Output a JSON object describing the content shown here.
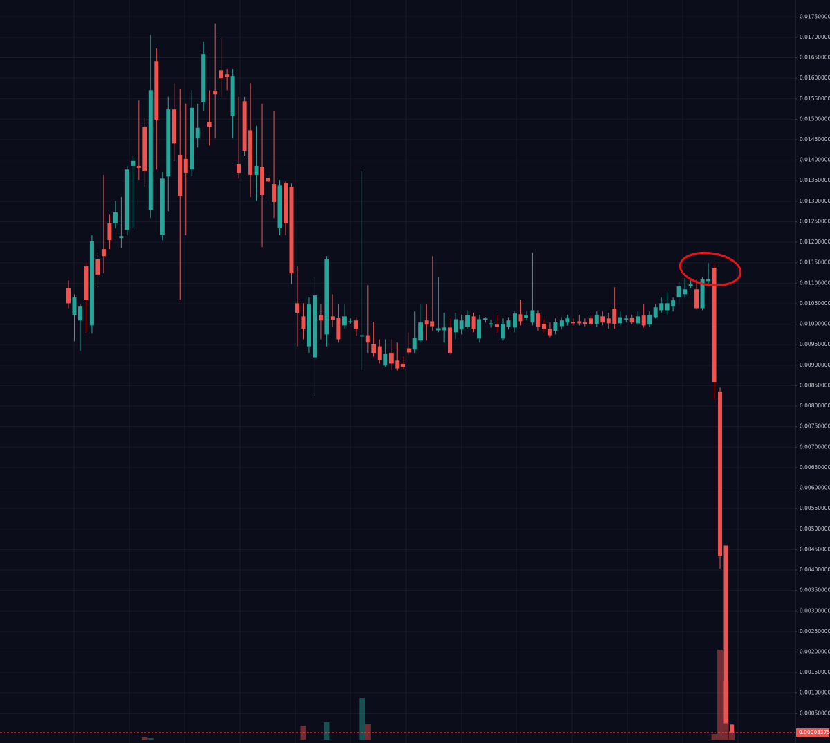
{
  "chart_data": {
    "type": "candlestick",
    "up_color": "#26a69a",
    "down_color": "#ef5350",
    "grid": true,
    "ylim": [
      -0.00022,
      0.01791
    ],
    "yticks": [
      {
        "value": 0.0005,
        "label": "0.00050000"
      },
      {
        "value": 0.001,
        "label": "0.00100000"
      },
      {
        "value": 0.0015,
        "label": "0.00150000"
      },
      {
        "value": 0.002,
        "label": "0.00200000"
      },
      {
        "value": 0.0025,
        "label": "0.00250000"
      },
      {
        "value": 0.003,
        "label": "0.00300000"
      },
      {
        "value": 0.0035,
        "label": "0.00350000"
      },
      {
        "value": 0.004,
        "label": "0.00400000"
      },
      {
        "value": 0.0045,
        "label": "0.00450000"
      },
      {
        "value": 0.005,
        "label": "0.00500000"
      },
      {
        "value": 0.0055,
        "label": "0.00550000"
      },
      {
        "value": 0.006,
        "label": "0.00600000"
      },
      {
        "value": 0.0065,
        "label": "0.00650000"
      },
      {
        "value": 0.007,
        "label": "0.00700000"
      },
      {
        "value": 0.0075,
        "label": "0.00750000"
      },
      {
        "value": 0.008,
        "label": "0.00800000"
      },
      {
        "value": 0.0085,
        "label": "0.00850000"
      },
      {
        "value": 0.009,
        "label": "0.00900000"
      },
      {
        "value": 0.0095,
        "label": "0.00950000"
      },
      {
        "value": 0.01,
        "label": "0.01000000"
      },
      {
        "value": 0.0105,
        "label": "0.01050000"
      },
      {
        "value": 0.011,
        "label": "0.01100000"
      },
      {
        "value": 0.0115,
        "label": "0.01150000"
      },
      {
        "value": 0.012,
        "label": "0.01200000"
      },
      {
        "value": 0.0125,
        "label": "0.01250000"
      },
      {
        "value": 0.013,
        "label": "0.01300000"
      },
      {
        "value": 0.0135,
        "label": "0.01350000"
      },
      {
        "value": 0.014,
        "label": "0.01400000"
      },
      {
        "value": 0.0145,
        "label": "0.01450000"
      },
      {
        "value": 0.015,
        "label": "0.01500000"
      },
      {
        "value": 0.0155,
        "label": "0.01550000"
      },
      {
        "value": 0.016,
        "label": "0.01600000"
      },
      {
        "value": 0.0165,
        "label": "0.01650000"
      },
      {
        "value": 0.017,
        "label": "0.01700000"
      },
      {
        "value": 0.0175,
        "label": "0.01750000"
      }
    ],
    "last_price": {
      "value": 3.375e-05,
      "label": "0.00003375"
    },
    "open": [
      0.01088,
      0.01023,
      0.01009,
      0.01141,
      0.00997,
      0.01158,
      0.01183,
      0.01246,
      0.01246,
      0.0121,
      0.0123,
      0.01386,
      0.01386,
      0.01482,
      0.01279,
      0.01642,
      0.01217,
      0.0136,
      0.01524,
      0.01413,
      0.01403,
      0.01377,
      0.01453,
      0.01541,
      0.01494,
      0.0157,
      0.0162,
      0.0161,
      0.01509,
      0.01391,
      0.01544,
      0.01473,
      0.01364,
      0.01384,
      0.01357,
      0.01342,
      0.01234,
      0.01345,
      0.01335,
      0.01051,
      0.01019,
      0.00946,
      0.00919,
      0.01023,
      0.00975,
      0.01019,
      0.01016,
      0.00997,
      0.01006,
      0.01009,
      0.0097,
      0.00973,
      0.00952,
      0.00946,
      0.00899,
      0.0093,
      0.00911,
      0.00903,
      0.00941,
      0.00938,
      0.0096,
      0.01009,
      0.01007,
      0.00985,
      0.00985,
      0.00992,
      0.0098,
      0.00987,
      0.00994,
      0.01019,
      0.00965,
      0.01011,
      0.00999,
      0.00999,
      0.00965,
      0.00994,
      0.00992,
      0.01024,
      0.01016,
      0.01004,
      0.01026,
      0.01001,
      0.00989,
      0.00984,
      0.00995,
      0.01004,
      0.01006,
      0.01007,
      0.01006,
      0.01014,
      0.01001,
      0.01019,
      0.01014,
      0.01038,
      0.01002,
      0.01011,
      0.01016,
      0.01002,
      0.01021,
      0.00999,
      0.01017,
      0.01034,
      0.01034,
      0.01043,
      0.01065,
      0.01073,
      0.01093,
      0.01085,
      0.01039,
      0.01105,
      0.01136,
      0.00835,
      0.0046,
      0.00023
    ],
    "high": [
      0.01107,
      0.01073,
      0.01048,
      0.01149,
      0.01217,
      0.01175,
      0.01364,
      0.01267,
      0.01301,
      0.0131,
      0.01386,
      0.01411,
      0.01546,
      0.01504,
      0.01706,
      0.01673,
      0.01372,
      0.01555,
      0.01588,
      0.01575,
      0.01538,
      0.01571,
      0.01538,
      0.0169,
      0.01571,
      0.01734,
      0.01698,
      0.01622,
      0.01622,
      0.01555,
      0.01555,
      0.01588,
      0.01484,
      0.01538,
      0.01365,
      0.01521,
      0.01352,
      0.01348,
      0.01343,
      0.01141,
      0.01051,
      0.01065,
      0.01115,
      0.01048,
      0.01166,
      0.01073,
      0.01048,
      0.01048,
      0.01014,
      0.01017,
      0.01374,
      0.01095,
      0.01006,
      0.00963,
      0.00963,
      0.00963,
      0.00955,
      0.00921,
      0.0098,
      0.01031,
      0.01048,
      0.01048,
      0.01166,
      0.01115,
      0.01028,
      0.01014,
      0.01028,
      0.01023,
      0.01034,
      0.01028,
      0.01023,
      0.01017,
      0.01011,
      0.01023,
      0.01014,
      0.01017,
      0.01031,
      0.0106,
      0.01031,
      0.01175,
      0.01034,
      0.01014,
      0.01004,
      0.01014,
      0.01017,
      0.01023,
      0.01014,
      0.01023,
      0.01014,
      0.01023,
      0.01031,
      0.01031,
      0.01028,
      0.0109,
      0.01031,
      0.01021,
      0.01023,
      0.01031,
      0.01048,
      0.01031,
      0.01048,
      0.01065,
      0.01078,
      0.01065,
      0.01102,
      0.01112,
      0.01107,
      0.01109,
      0.01115,
      0.01149,
      0.01149,
      0.00845,
      0.0046,
      0.00023
    ],
    "low": [
      0.01039,
      0.00958,
      0.00935,
      0.0098,
      0.00977,
      0.0109,
      0.01124,
      0.01183,
      0.01234,
      0.01186,
      0.01217,
      0.01234,
      0.01352,
      0.01335,
      0.01259,
      0.01377,
      0.01205,
      0.01276,
      0.01398,
      0.0106,
      0.01217,
      0.0136,
      0.01431,
      0.01521,
      0.01436,
      0.01453,
      0.01555,
      0.01571,
      0.01453,
      0.01355,
      0.01411,
      0.0131,
      0.01301,
      0.01188,
      0.01301,
      0.01259,
      0.01217,
      0.01217,
      0.01098,
      0.00946,
      0.00963,
      0.0093,
      0.00825,
      0.00963,
      0.00946,
      0.00994,
      0.00955,
      0.00989,
      0.01001,
      0.00972,
      0.00887,
      0.0093,
      0.00921,
      0.00904,
      0.00896,
      0.00887,
      0.00887,
      0.00891,
      0.00926,
      0.0093,
      0.00955,
      0.0096,
      0.00984,
      0.0098,
      0.00955,
      0.00926,
      0.00963,
      0.00975,
      0.00989,
      0.0098,
      0.00955,
      0.01004,
      0.00992,
      0.0098,
      0.0096,
      0.00987,
      0.0098,
      0.00997,
      0.01011,
      0.00997,
      0.00984,
      0.00977,
      0.00968,
      0.00975,
      0.00987,
      0.00997,
      0.00997,
      0.00997,
      0.00995,
      0.00997,
      0.00994,
      0.00997,
      0.00989,
      0.00989,
      0.00997,
      0.01004,
      0.00999,
      0.00997,
      0.00992,
      0.00994,
      0.01014,
      0.01028,
      0.01023,
      0.01031,
      0.01048,
      0.01065,
      0.01088,
      0.01036,
      0.01034,
      0.01098,
      0.00815,
      0.00403,
      9e-05,
      3e-05
    ],
    "close": [
      0.01051,
      0.01065,
      0.01043,
      0.0106,
      0.01202,
      0.01121,
      0.01166,
      0.01205,
      0.01273,
      0.01215,
      0.01377,
      0.01398,
      0.01381,
      0.01374,
      0.01571,
      0.01499,
      0.01355,
      0.01524,
      0.01441,
      0.01313,
      0.01369,
      0.01528,
      0.01479,
      0.01659,
      0.01482,
      0.01561,
      0.016,
      0.01602,
      0.01605,
      0.01369,
      0.01423,
      0.01364,
      0.01386,
      0.01315,
      0.01348,
      0.01298,
      0.01338,
      0.01246,
      0.01124,
      0.01028,
      0.00989,
      0.01048,
      0.0107,
      0.01009,
      0.01158,
      0.01011,
      0.00963,
      0.01019,
      0.01007,
      0.00989,
      0.00973,
      0.00955,
      0.0093,
      0.00913,
      0.00928,
      0.00904,
      0.00892,
      0.00896,
      0.00931,
      0.00967,
      0.01004,
      0.00999,
      0.00995,
      0.0099,
      0.00992,
      0.0093,
      0.01012,
      0.01009,
      0.01023,
      0.00989,
      0.01012,
      0.01014,
      0.01002,
      0.00994,
      0.01001,
      0.01009,
      0.01026,
      0.01007,
      0.01021,
      0.01034,
      0.00994,
      0.00989,
      0.00973,
      0.01006,
      0.01009,
      0.01014,
      0.01002,
      0.01002,
      0.01001,
      0.01001,
      0.01023,
      0.01004,
      0.01002,
      0.01001,
      0.01017,
      0.01014,
      0.01004,
      0.01019,
      0.00997,
      0.01023,
      0.01041,
      0.01051,
      0.01051,
      0.01058,
      0.01092,
      0.01085,
      0.01097,
      0.01039,
      0.01109,
      0.0111,
      0.00859,
      0.00435,
      0.00026,
      3.375e-05
    ],
    "volume": [
      0,
      0,
      0,
      0,
      0,
      0,
      0,
      0,
      0,
      0,
      0,
      0,
      0,
      3,
      2,
      0,
      0,
      0,
      0,
      0,
      0,
      0,
      0,
      0,
      0,
      0,
      0,
      0,
      0,
      0,
      0,
      0,
      0,
      0,
      0,
      0,
      0,
      0,
      0,
      0,
      20,
      0,
      0,
      0,
      25,
      0,
      0,
      0,
      0,
      0,
      60,
      22,
      0,
      0,
      0,
      0,
      0,
      0,
      0,
      0,
      0,
      0,
      0,
      0,
      0,
      0,
      0,
      0,
      0,
      0,
      0,
      0,
      0,
      0,
      0,
      0,
      0,
      0,
      0,
      0,
      0,
      0,
      0,
      0,
      0,
      0,
      0,
      0,
      0,
      0,
      0,
      0,
      0,
      0,
      0,
      0,
      0,
      0,
      0,
      0,
      0,
      0,
      0,
      0,
      0,
      0,
      0,
      0,
      0,
      0,
      8,
      130,
      85,
      12
    ]
  }
}
